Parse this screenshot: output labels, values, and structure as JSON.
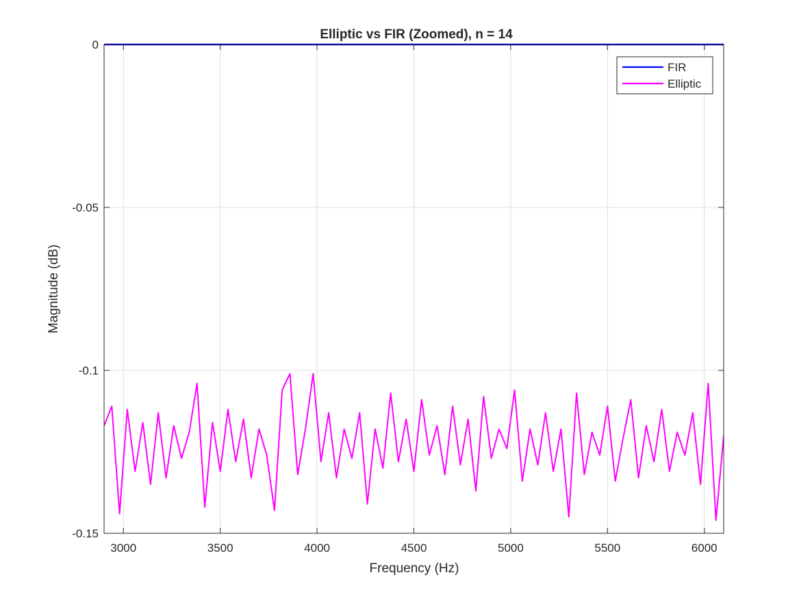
{
  "chart_data": {
    "type": "line",
    "title": "Elliptic vs FIR (Zoomed), n = 14",
    "xlabel": "Frequency (Hz)",
    "ylabel": "Magnitude (dB)",
    "xlim": [
      2900,
      6100
    ],
    "ylim": [
      -0.15,
      0
    ],
    "xticks": [
      3000,
      3500,
      4000,
      4500,
      5000,
      5500,
      6000
    ],
    "yticks": [
      -0.15,
      -0.1,
      -0.05,
      0
    ],
    "ytick_labels": [
      "-0.15",
      "-0.1",
      "-0.05",
      "0"
    ],
    "grid": true,
    "legend_position": "top-right",
    "series": [
      {
        "name": "FIR",
        "color": "#0000ff",
        "x": [
          2900,
          6100
        ],
        "y": [
          0,
          0
        ]
      },
      {
        "name": "Elliptic",
        "color": "#ff00ff",
        "x": [
          2900,
          2940,
          2980,
          3020,
          3060,
          3100,
          3140,
          3180,
          3220,
          3260,
          3300,
          3340,
          3380,
          3420,
          3460,
          3500,
          3540,
          3580,
          3620,
          3660,
          3700,
          3740,
          3780,
          3820,
          3860,
          3900,
          3940,
          3980,
          4020,
          4060,
          4100,
          4140,
          4180,
          4220,
          4260,
          4300,
          4340,
          4380,
          4420,
          4460,
          4500,
          4540,
          4580,
          4620,
          4660,
          4700,
          4740,
          4780,
          4820,
          4860,
          4900,
          4940,
          4980,
          5020,
          5060,
          5100,
          5140,
          5180,
          5220,
          5260,
          5300,
          5340,
          5380,
          5420,
          5460,
          5500,
          5540,
          5580,
          5620,
          5660,
          5700,
          5740,
          5780,
          5820,
          5860,
          5900,
          5940,
          5980,
          6020,
          6060,
          6100
        ],
        "y": [
          -0.117,
          -0.111,
          -0.144,
          -0.112,
          -0.131,
          -0.116,
          -0.135,
          -0.113,
          -0.133,
          -0.117,
          -0.127,
          -0.119,
          -0.104,
          -0.142,
          -0.116,
          -0.131,
          -0.112,
          -0.128,
          -0.115,
          -0.133,
          -0.118,
          -0.126,
          -0.143,
          -0.106,
          -0.101,
          -0.132,
          -0.118,
          -0.101,
          -0.128,
          -0.113,
          -0.133,
          -0.118,
          -0.127,
          -0.113,
          -0.141,
          -0.118,
          -0.13,
          -0.107,
          -0.128,
          -0.115,
          -0.131,
          -0.109,
          -0.126,
          -0.117,
          -0.132,
          -0.111,
          -0.129,
          -0.115,
          -0.137,
          -0.108,
          -0.127,
          -0.118,
          -0.124,
          -0.106,
          -0.134,
          -0.118,
          -0.129,
          -0.113,
          -0.131,
          -0.118,
          -0.145,
          -0.107,
          -0.132,
          -0.119,
          -0.126,
          -0.111,
          -0.134,
          -0.121,
          -0.109,
          -0.133,
          -0.117,
          -0.128,
          -0.112,
          -0.131,
          -0.119,
          -0.126,
          -0.113,
          -0.135,
          -0.104,
          -0.146,
          -0.12
        ]
      }
    ]
  }
}
